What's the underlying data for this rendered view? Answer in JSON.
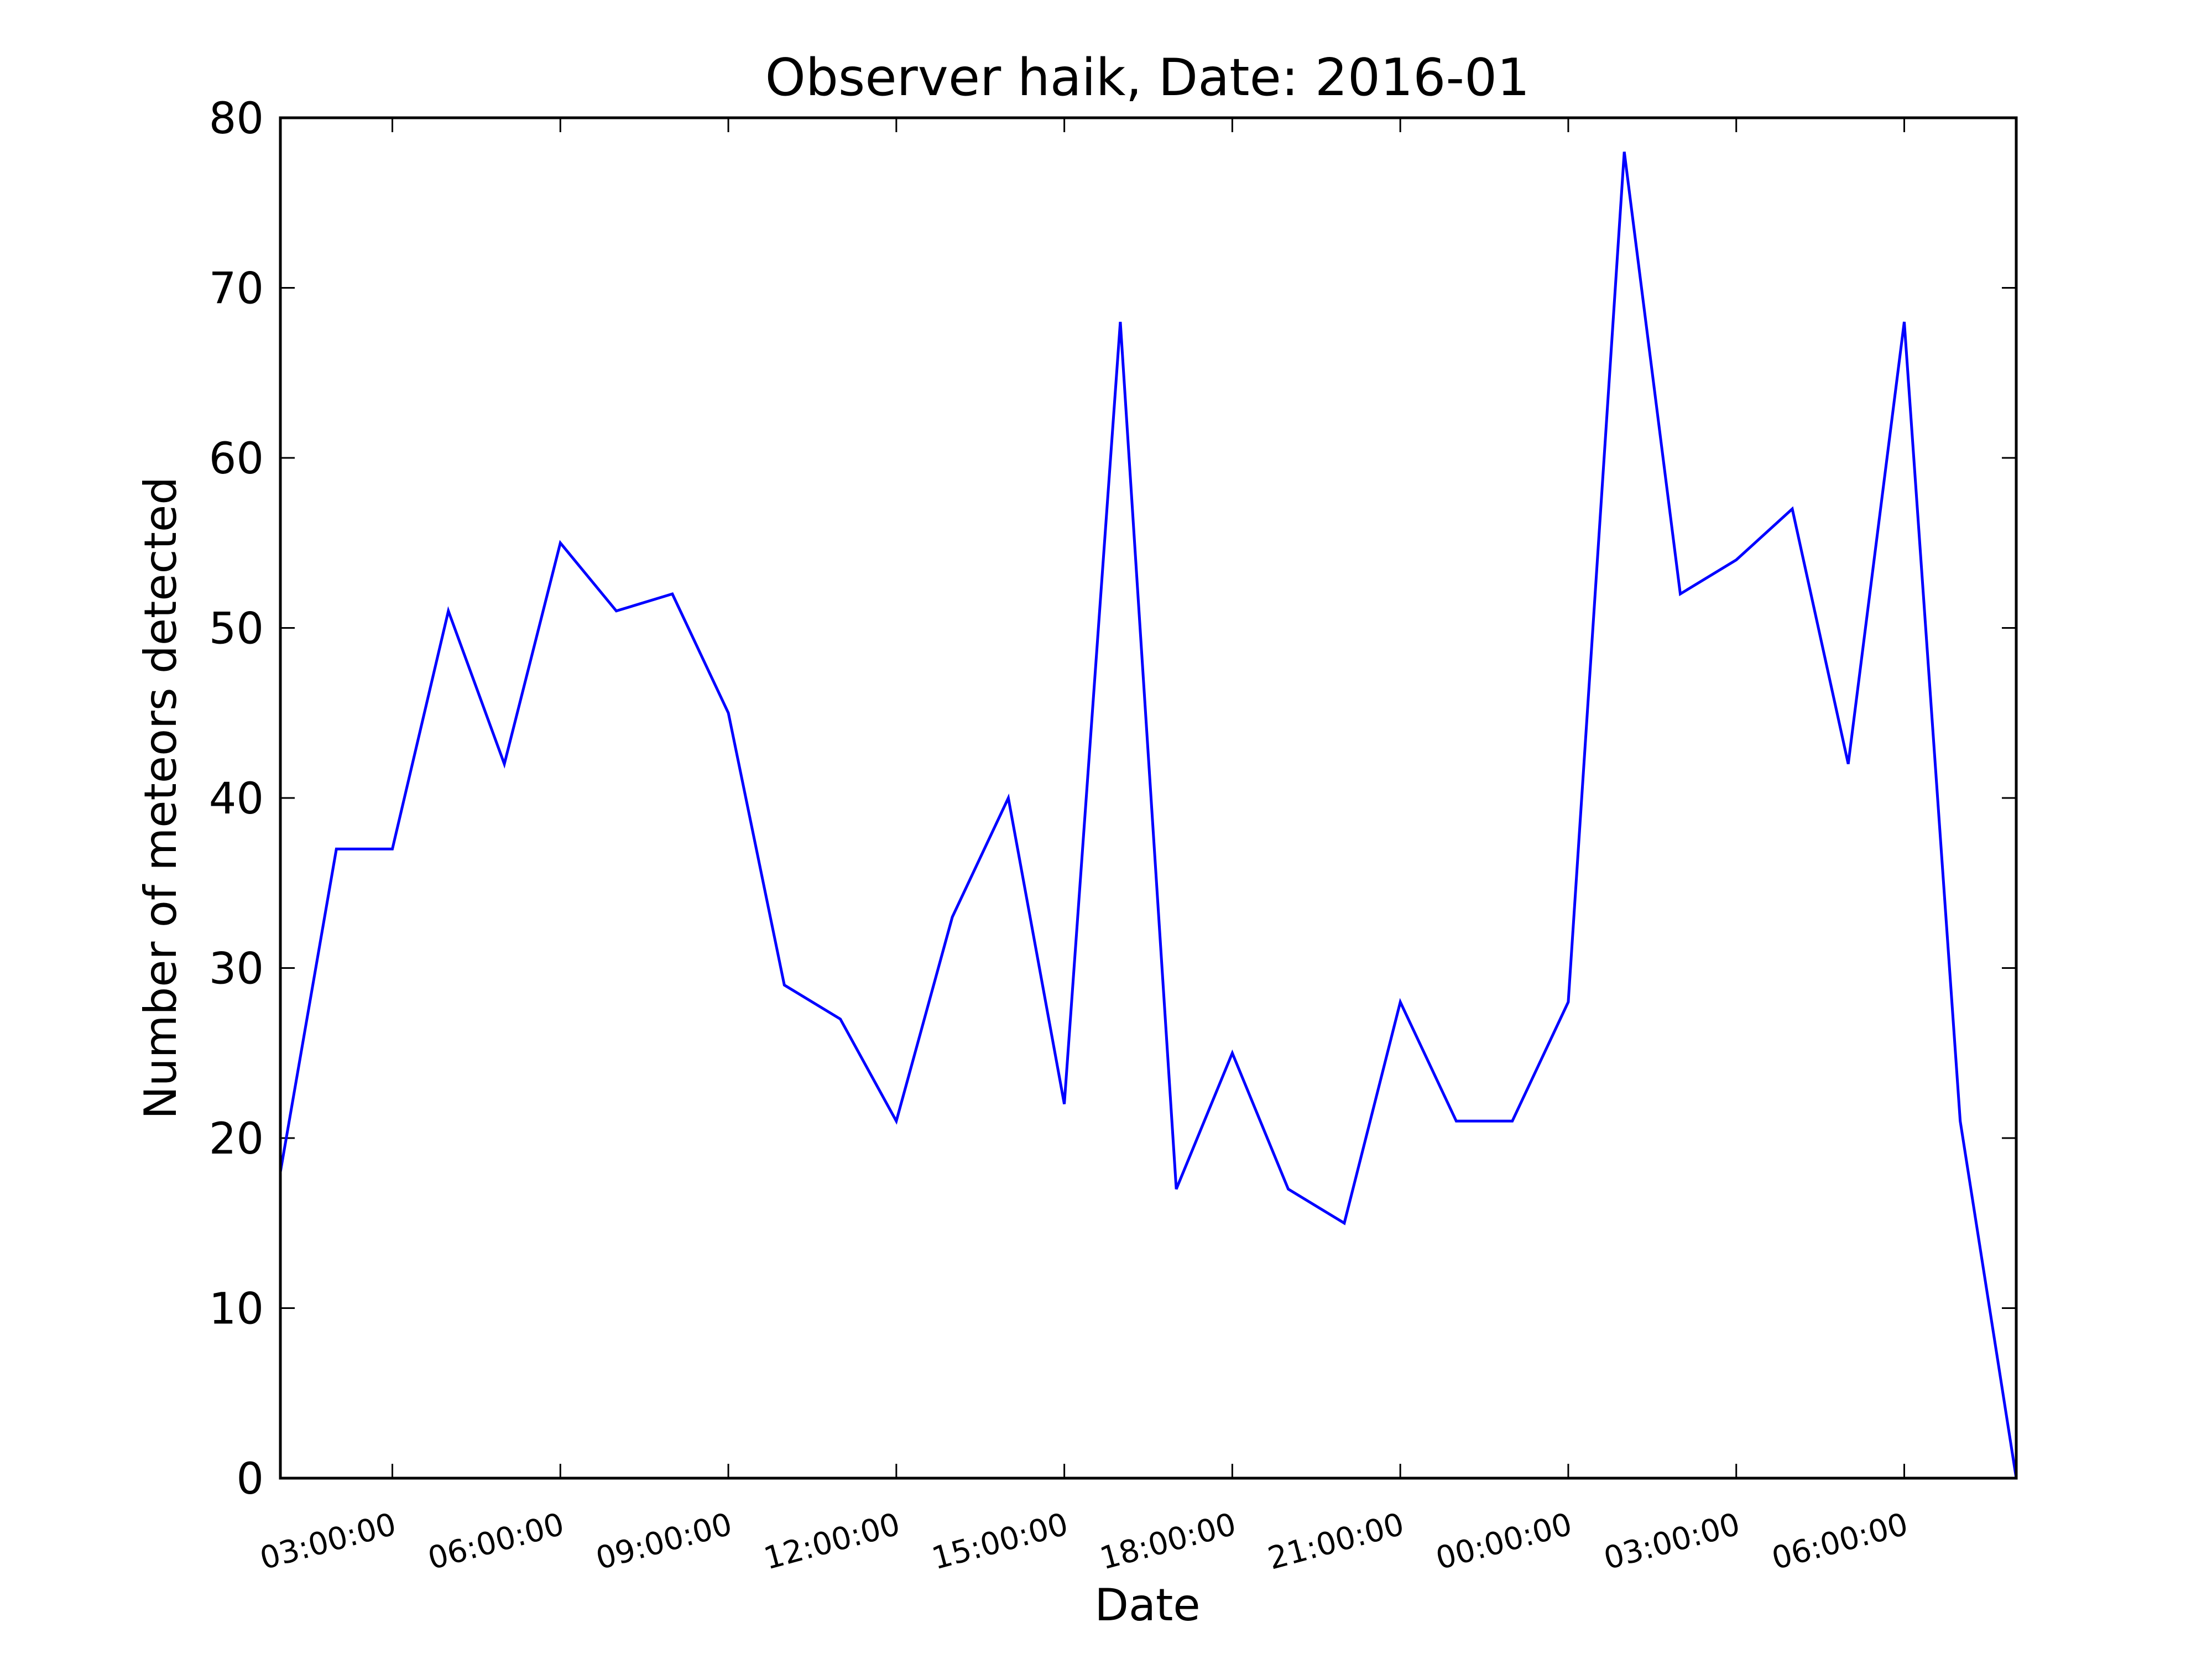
{
  "chart_data": {
    "type": "line",
    "title": "Observer haik, Date: 2016-01",
    "xlabel": "Date",
    "ylabel": "Number of meteors detected",
    "ylim": [
      0,
      80
    ],
    "yticks": [
      0,
      10,
      20,
      30,
      40,
      50,
      60,
      70,
      80
    ],
    "xlim": [
      "2016-01-01 01:00:00",
      "2016-01-02 08:00:00"
    ],
    "xticks": [
      {
        "value": "2016-01-01 03:00:00",
        "label": "03:00:00"
      },
      {
        "value": "2016-01-01 06:00:00",
        "label": "06:00:00"
      },
      {
        "value": "2016-01-01 09:00:00",
        "label": "09:00:00"
      },
      {
        "value": "2016-01-01 12:00:00",
        "label": "12:00:00"
      },
      {
        "value": "2016-01-01 15:00:00",
        "label": "15:00:00"
      },
      {
        "value": "2016-01-01 18:00:00",
        "label": "18:00:00"
      },
      {
        "value": "2016-01-01 21:00:00",
        "label": "21:00:00"
      },
      {
        "value": "2016-01-02 00:00:00",
        "label": "00:00:00"
      },
      {
        "value": "2016-01-02 03:00:00",
        "label": "03:00:00"
      },
      {
        "value": "2016-01-02 06:00:00",
        "label": "06:00:00"
      }
    ],
    "grid": false,
    "series": [
      {
        "color": "#0000ff",
        "x": [
          "2016-01-01 01:00:00",
          "2016-01-01 02:00:00",
          "2016-01-01 03:00:00",
          "2016-01-01 04:00:00",
          "2016-01-01 05:00:00",
          "2016-01-01 06:00:00",
          "2016-01-01 07:00:00",
          "2016-01-01 08:00:00",
          "2016-01-01 09:00:00",
          "2016-01-01 10:00:00",
          "2016-01-01 11:00:00",
          "2016-01-01 12:00:00",
          "2016-01-01 13:00:00",
          "2016-01-01 14:00:00",
          "2016-01-01 15:00:00",
          "2016-01-01 16:00:00",
          "2016-01-01 17:00:00",
          "2016-01-01 18:00:00",
          "2016-01-01 19:00:00",
          "2016-01-01 20:00:00",
          "2016-01-01 21:00:00",
          "2016-01-01 22:00:00",
          "2016-01-01 23:00:00",
          "2016-01-02 00:00:00",
          "2016-01-02 01:00:00",
          "2016-01-02 02:00:00",
          "2016-01-02 03:00:00",
          "2016-01-02 04:00:00",
          "2016-01-02 05:00:00",
          "2016-01-02 06:00:00",
          "2016-01-02 07:00:00",
          "2016-01-02 08:00:00"
        ],
        "values": [
          18,
          37,
          37,
          51,
          42,
          55,
          51,
          52,
          45,
          29,
          27,
          21,
          33,
          40,
          22,
          68,
          17,
          25,
          17,
          15,
          28,
          21,
          21,
          28,
          78,
          52,
          54,
          57,
          42,
          68,
          21,
          0
        ]
      }
    ]
  }
}
